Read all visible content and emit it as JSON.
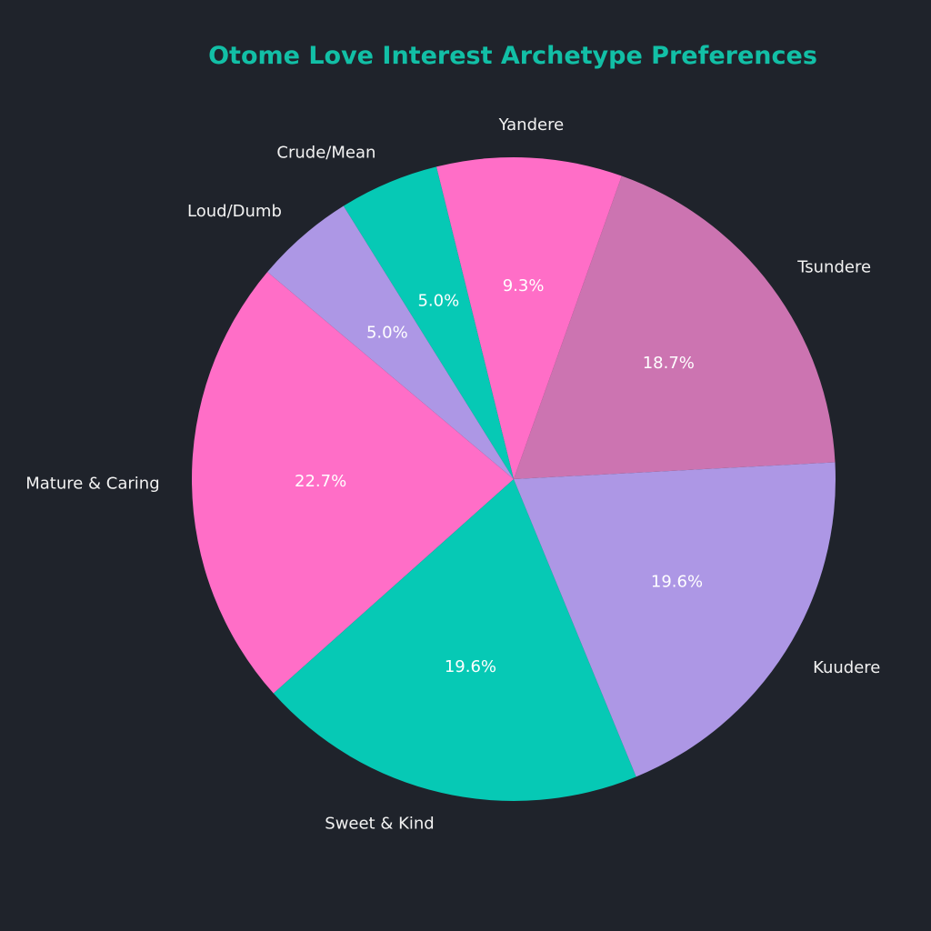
{
  "chart_data": {
    "type": "pie",
    "title": "Otome Love Interest Archetype Preferences",
    "start_angle_deg": 3,
    "direction": "counterclockwise",
    "background": "#1f232b",
    "title_color": "#12bfa6",
    "slices": [
      {
        "label": "Tsundere",
        "value": 18.7,
        "pct_label": "18.7%",
        "color": "#cc74b1"
      },
      {
        "label": "Yandere",
        "value": 9.3,
        "pct_label": "9.3%",
        "color": "#ff6ec7"
      },
      {
        "label": "Crude/Mean",
        "value": 5.0,
        "pct_label": "5.0%",
        "color": "#06c9b5"
      },
      {
        "label": "Loud/Dumb",
        "value": 5.0,
        "pct_label": "5.0%",
        "color": "#ad97e5"
      },
      {
        "label": "Mature & Caring",
        "value": 22.7,
        "pct_label": "22.7%",
        "color": "#ff6ec7"
      },
      {
        "label": "Sweet & Kind",
        "value": 19.6,
        "pct_label": "19.6%",
        "color": "#06c9b5"
      },
      {
        "label": "Kuudere",
        "value": 19.6,
        "pct_label": "19.6%",
        "color": "#ad97e5"
      }
    ]
  }
}
